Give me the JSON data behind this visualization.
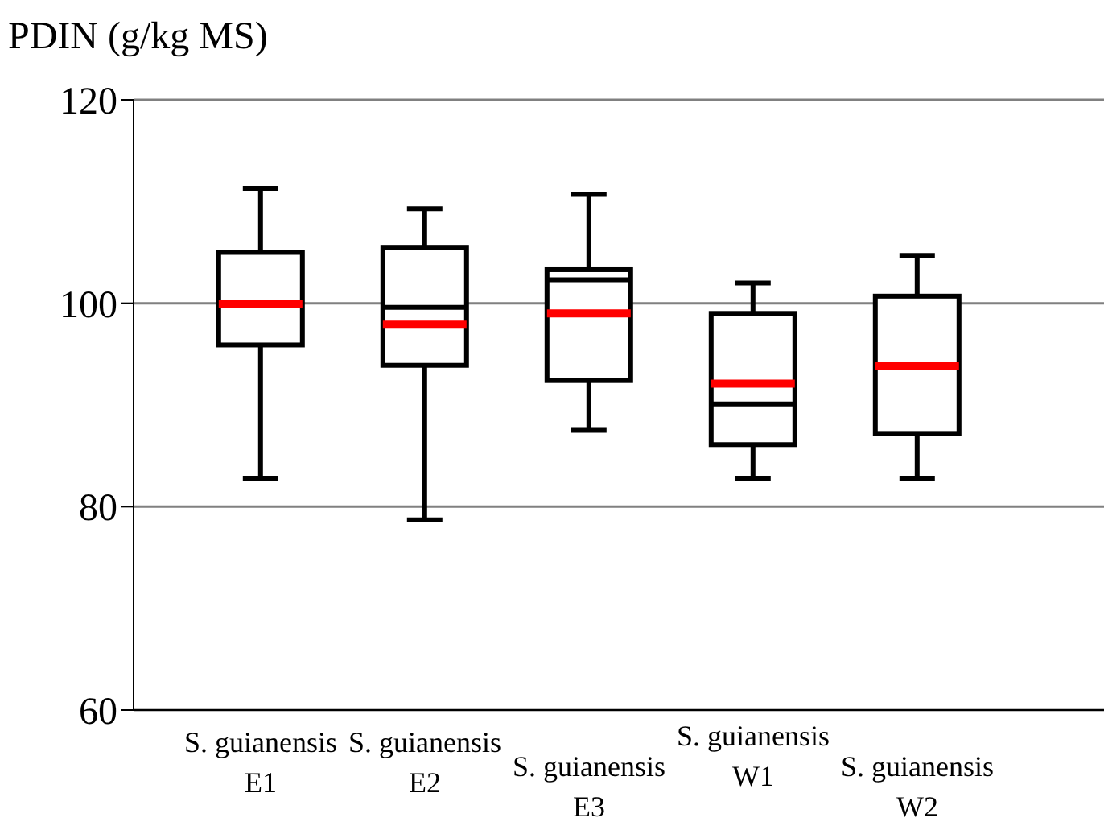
{
  "chart_data": {
    "type": "box",
    "title": "PDIN (g/kg MS)",
    "categories": [
      "S. guianensis E1",
      "S. guianensis E2",
      "S. guianensis E3",
      "S. guianensis W1",
      "S. guianensis W2"
    ],
    "series": [
      {
        "color": "#000000",
        "boxes": [
          {
            "low": 82.8,
            "q1": 95.9,
            "median": 100,
            "q3": 105,
            "high": 111.3,
            "mean": 99.9
          },
          {
            "low": 78.7,
            "q1": 93.9,
            "median": 99.6,
            "q3": 105.5,
            "high": 109.3,
            "mean": 97.9
          },
          {
            "low": 87.5,
            "q1": 92.4,
            "median": 102.3,
            "q3": 103.3,
            "high": 110.7,
            "mean": 99
          },
          {
            "low": 82.8,
            "q1": 86.1,
            "median": 90.1,
            "q3": 99,
            "high": 102,
            "mean": 92.1
          },
          {
            "low": 82.8,
            "q1": 87.2,
            "median": 93.8,
            "q3": 100.7,
            "high": 104.7,
            "mean": 93.8
          }
        ]
      }
    ],
    "ylim": [
      60,
      120
    ],
    "yticks": [
      60,
      80,
      100,
      120
    ],
    "grid": "y"
  }
}
